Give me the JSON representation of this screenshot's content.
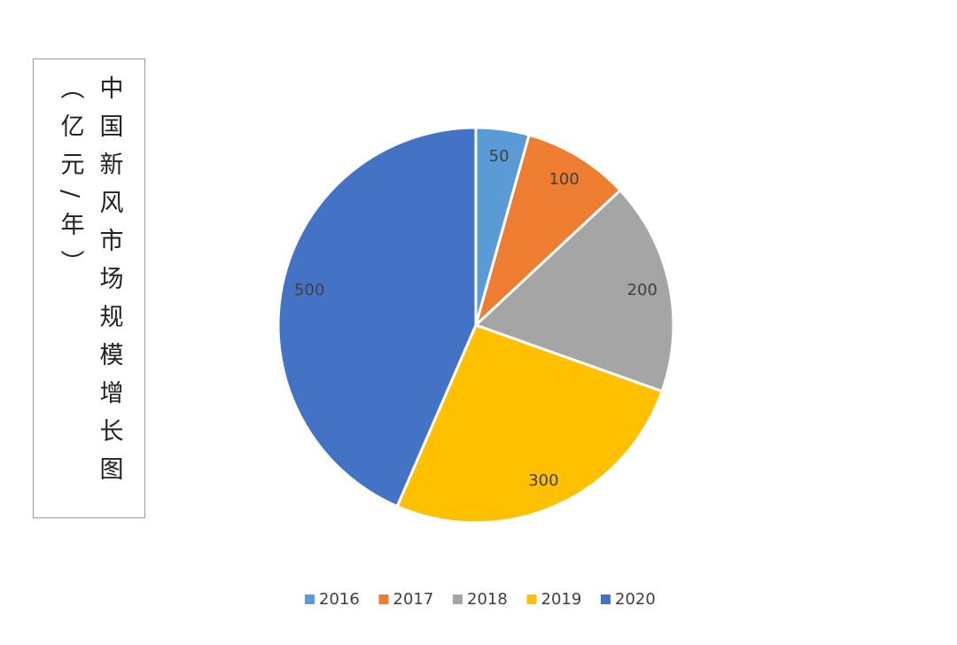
{
  "chart_data": {
    "type": "pie",
    "title": "中国新风市场规模增长图",
    "subtitle": "（亿元/年）",
    "categories": [
      "2016",
      "2017",
      "2018",
      "2019",
      "2020"
    ],
    "values": [
      50,
      100,
      200,
      300,
      500
    ],
    "colors": [
      "#5b9bd5",
      "#ed7d31",
      "#a5a5a5",
      "#ffc000",
      "#4472c4"
    ],
    "legend": "bottom"
  }
}
